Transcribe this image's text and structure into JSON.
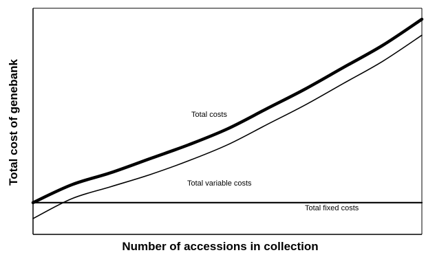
{
  "chart_data": {
    "type": "line",
    "title": "",
    "xlabel": "Number of accessions in collection",
    "ylabel": "Total cost of genebank",
    "xlim": [
      0,
      100
    ],
    "ylim": [
      0,
      100
    ],
    "grid": false,
    "legend": "none",
    "series": [
      {
        "name": "Total costs",
        "x": [
          0,
          10,
          20,
          30,
          40,
          50,
          60,
          70,
          80,
          90,
          100
        ],
        "y": [
          8,
          17,
          23,
          30,
          37,
          45,
          55,
          65,
          76,
          87,
          100
        ]
      },
      {
        "name": "Total variable costs",
        "x": [
          0,
          10,
          20,
          30,
          40,
          50,
          60,
          70,
          80,
          90,
          100
        ],
        "y": [
          0,
          10,
          16,
          22,
          29,
          37,
          47,
          57,
          68,
          79,
          92
        ]
      },
      {
        "name": "Total fixed costs",
        "x": [
          0,
          100
        ],
        "y": [
          8,
          8
        ]
      }
    ]
  }
}
